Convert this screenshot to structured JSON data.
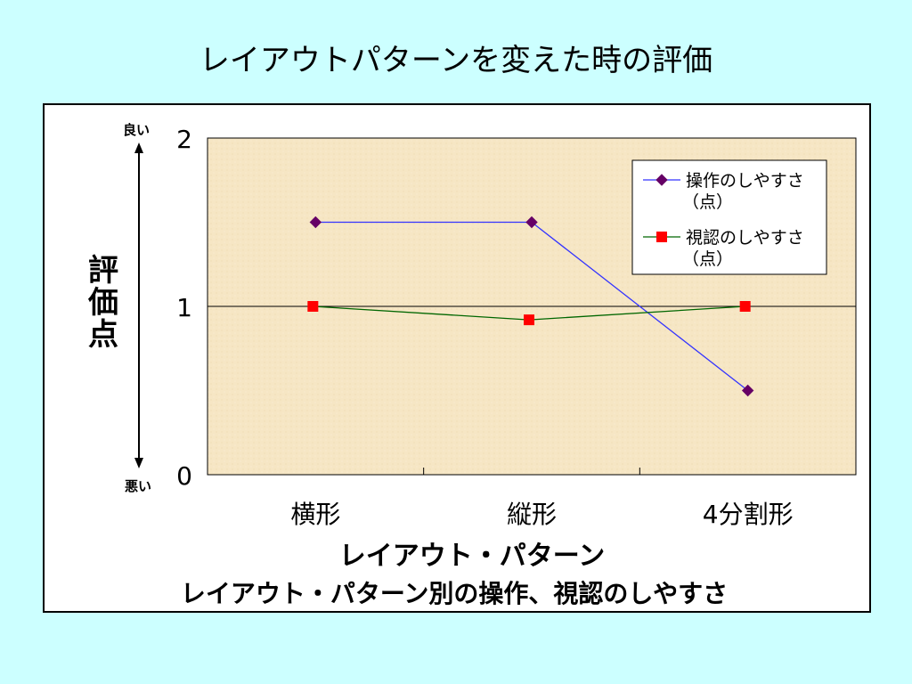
{
  "slide": {
    "title": "レイアウトパターンを変えた時の評価"
  },
  "chart_data": {
    "type": "line",
    "categories": [
      "横形",
      "縦形",
      "4分割形"
    ],
    "series": [
      {
        "name": "操作のしやすさ（点）",
        "values": [
          1.5,
          1.5,
          0.5
        ],
        "color": "#660066",
        "marker": "diamond"
      },
      {
        "name": "視認のしやすさ（点）",
        "values": [
          1.0,
          0.92,
          1.0
        ],
        "color": "#006600",
        "marker": "square",
        "marker_color": "#ff0000"
      }
    ],
    "ylabel": "評価点",
    "xlabel": "レイアウト・パターン",
    "caption": "レイアウト・パターン別の操作、視認のしやすさ",
    "ylim": [
      0,
      2
    ],
    "yticks": [
      "0",
      "1",
      "2"
    ],
    "y_arrow_top_label": "良い",
    "y_arrow_bottom_label": "悪い",
    "legend": [
      {
        "line1": "操作のしやすさ",
        "line2": "（点）"
      },
      {
        "line1": "視認のしやすさ",
        "line2": "（点）"
      }
    ],
    "reference_line_at": 1,
    "plot_background": "#f6e6c4",
    "legend_position": "top-right",
    "grid": false
  }
}
